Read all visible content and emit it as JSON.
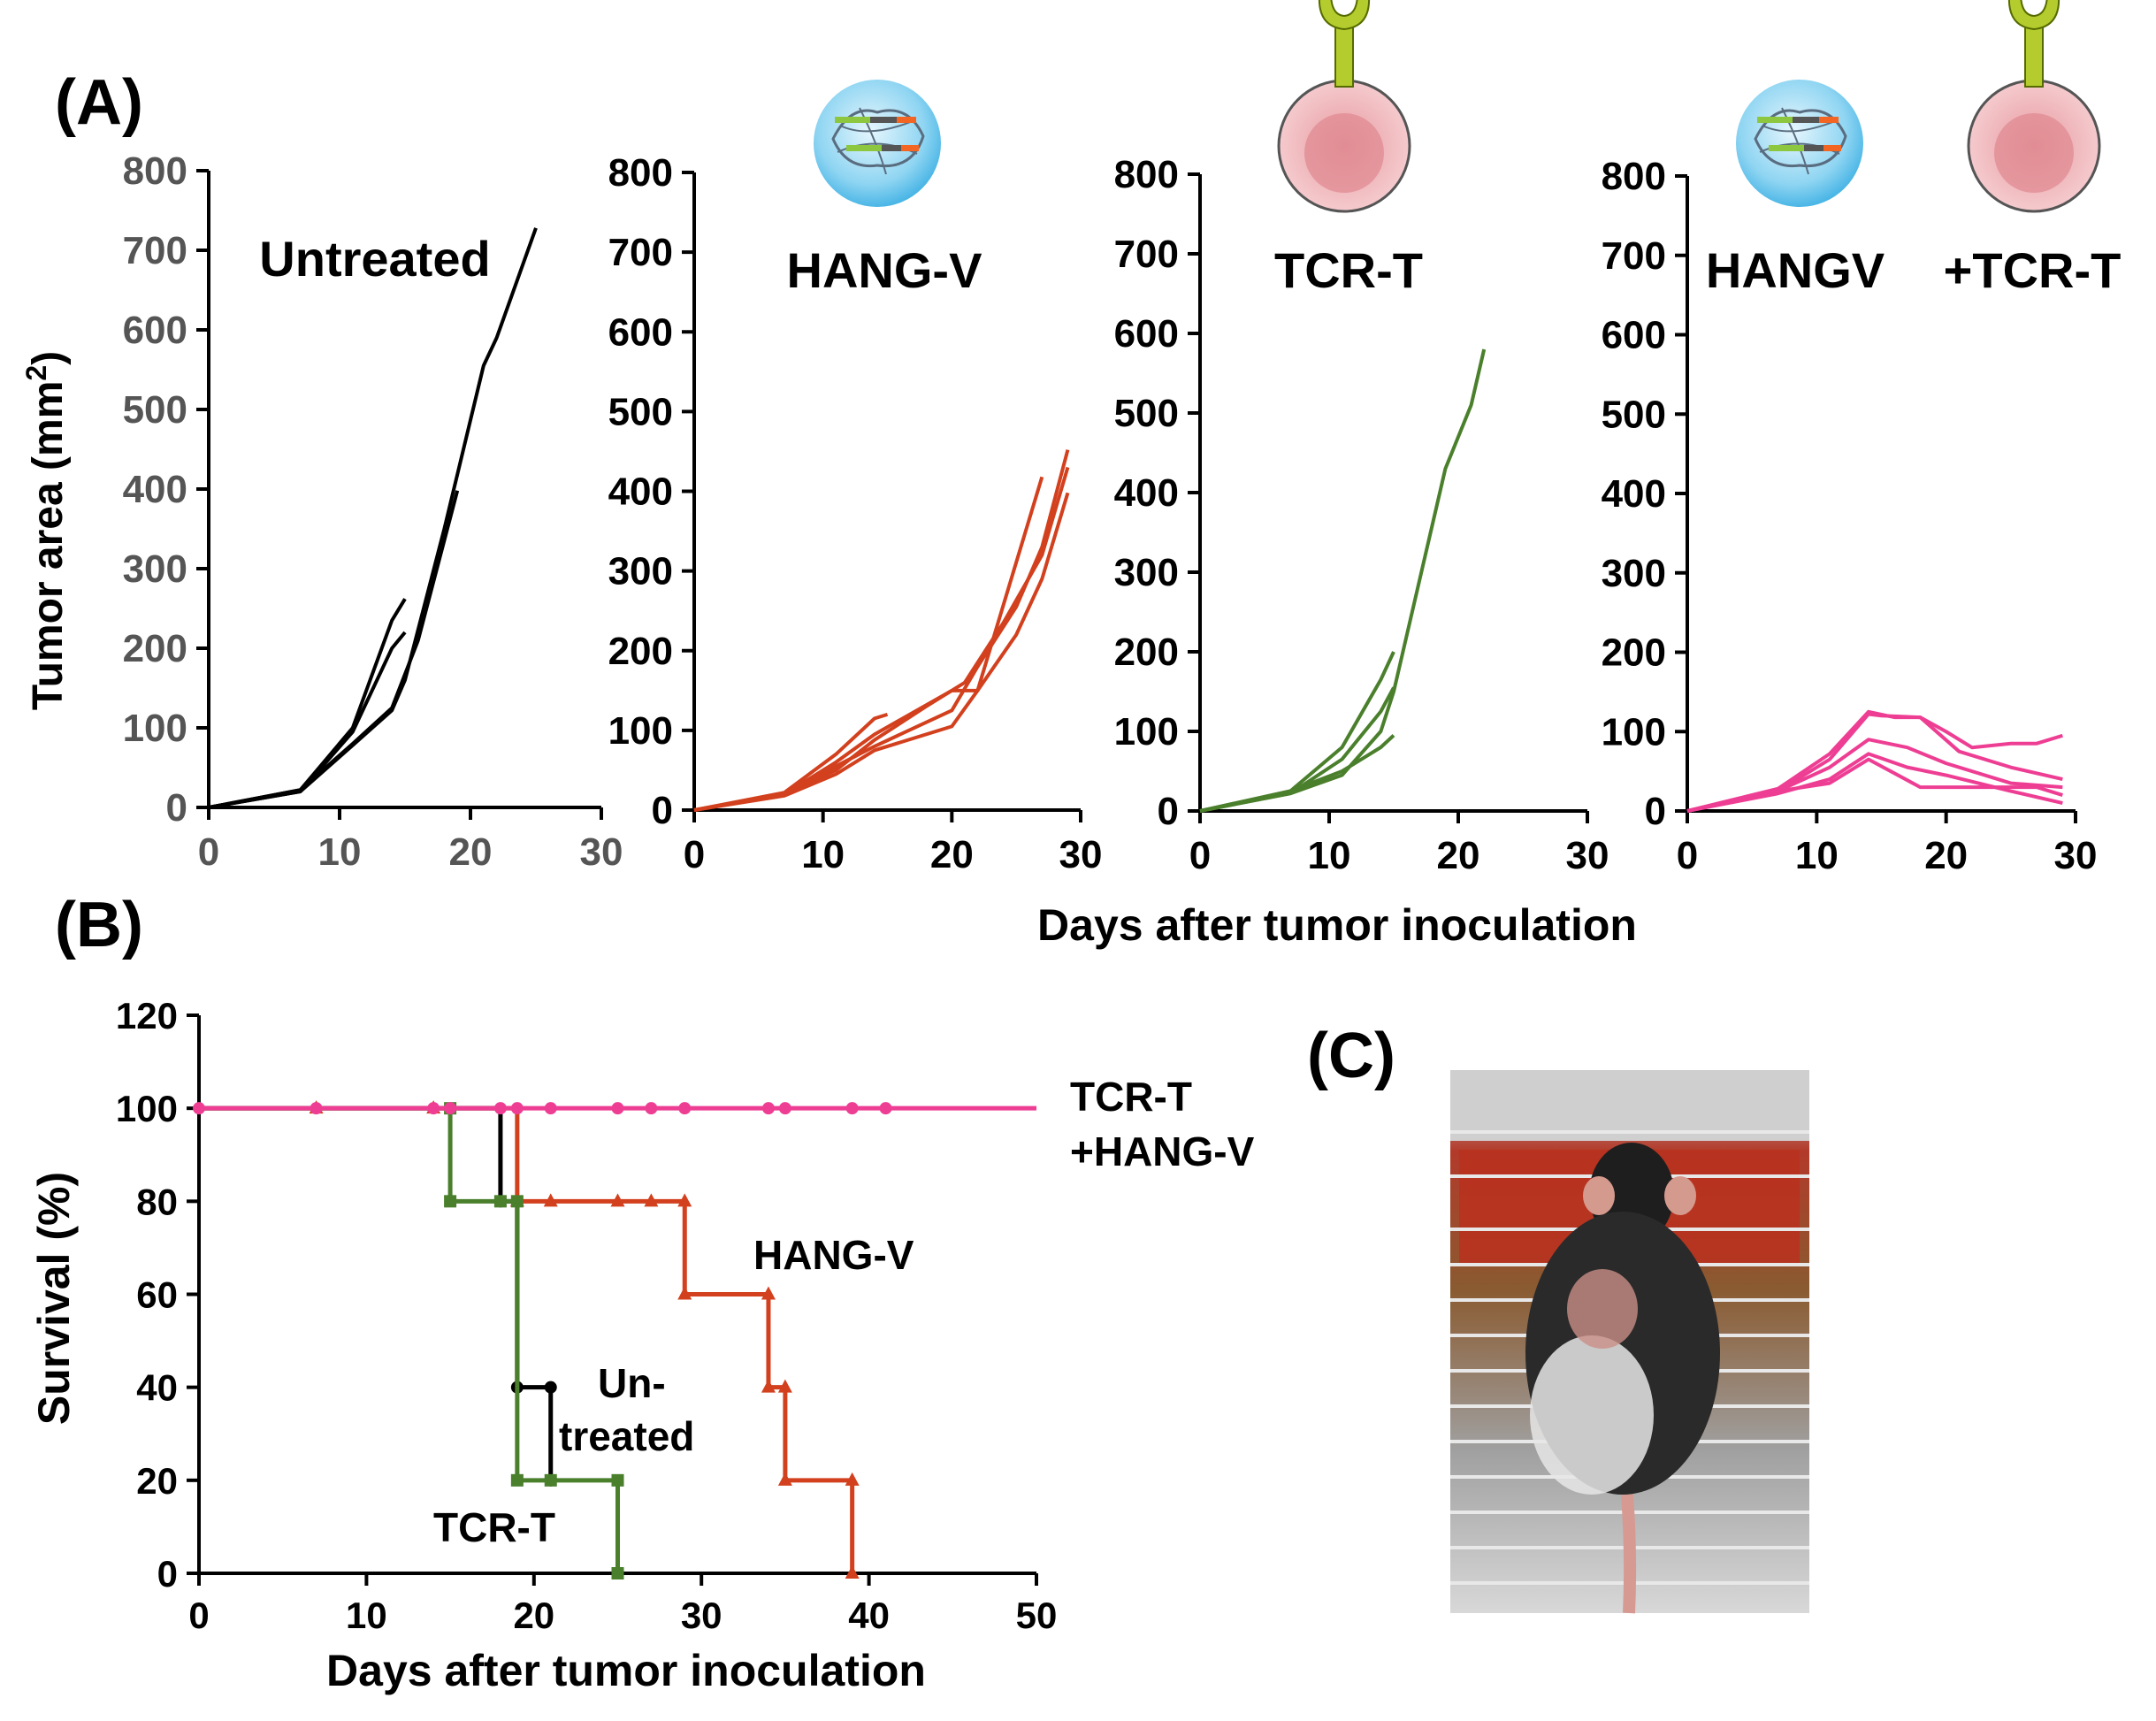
{
  "panel_labels": {
    "a": "(A)",
    "b": "(B)",
    "c": "(C)"
  },
  "colors": {
    "untreated": "#000000",
    "hangv": "#d2401e",
    "tcrt": "#4a7f2c",
    "combo": "#ee3e94"
  },
  "panel_a": {
    "ylabel": "Tumor area (mm",
    "ylabel_sup": "2",
    "ylabel_close": ")",
    "xlabel": "Days after tumor inoculation",
    "icons": [
      "nanovaccine-icon",
      "tcr-t-cell-icon"
    ]
  },
  "panel_b": {
    "ylabel": "Survival (%)",
    "xlabel": "Days after tumor inoculation",
    "labels": {
      "combo_1": "TCR-T",
      "combo_2": "+HANG-V",
      "hangv": "HANG-V",
      "untreated_1": "Un-",
      "untreated_2": "treated",
      "tcrt": "TCR-T"
    }
  },
  "panel_c": {
    "description": "photo-mouse-on-cage"
  },
  "chart_data": [
    {
      "type": "line",
      "title": "Untreated",
      "xlim": [
        0,
        30
      ],
      "ylim": [
        0,
        800
      ],
      "xticks": [
        0,
        10,
        20,
        30
      ],
      "yticks": [
        0,
        100,
        200,
        300,
        400,
        500,
        600,
        700,
        800
      ],
      "series": [
        {
          "x": [
            0,
            7,
            11,
            14,
            15
          ],
          "y": [
            0,
            22,
            100,
            235,
            262
          ]
        },
        {
          "x": [
            0,
            7,
            11,
            14,
            15
          ],
          "y": [
            0,
            20,
            95,
            200,
            220
          ]
        },
        {
          "x": [
            0,
            7,
            11,
            14,
            16,
            19
          ],
          "y": [
            0,
            22,
            80,
            125,
            210,
            398
          ]
        },
        {
          "x": [
            0,
            7,
            11,
            14,
            15,
            18,
            21,
            22,
            25
          ],
          "y": [
            0,
            20,
            78,
            122,
            160,
            350,
            555,
            590,
            728
          ]
        }
      ]
    },
    {
      "type": "line",
      "title": "HANG-V",
      "xlim": [
        0,
        30
      ],
      "ylim": [
        0,
        800
      ],
      "xticks": [
        0,
        10,
        20,
        30
      ],
      "yticks": [
        0,
        100,
        200,
        300,
        400,
        500,
        600,
        700,
        800
      ],
      "series": [
        {
          "x": [
            0,
            7,
            11,
            14,
            15
          ],
          "y": [
            0,
            22,
            70,
            115,
            120
          ]
        },
        {
          "x": [
            0,
            7,
            11,
            14,
            20,
            22,
            27
          ],
          "y": [
            0,
            20,
            60,
            95,
            150,
            150,
            418
          ]
        },
        {
          "x": [
            0,
            7,
            11,
            14,
            20,
            22,
            25,
            27,
            29
          ],
          "y": [
            0,
            20,
            55,
            80,
            125,
            180,
            255,
            330,
            452
          ]
        },
        {
          "x": [
            0,
            7,
            11,
            14,
            20,
            22,
            25,
            27,
            29
          ],
          "y": [
            0,
            18,
            45,
            75,
            105,
            150,
            220,
            290,
            398
          ]
        },
        {
          "x": [
            0,
            7,
            11,
            14,
            18,
            21,
            24,
            27,
            29
          ],
          "y": [
            0,
            20,
            50,
            88,
            130,
            160,
            235,
            320,
            430
          ]
        }
      ]
    },
    {
      "type": "line",
      "title": "TCR-T",
      "xlim": [
        0,
        30
      ],
      "ylim": [
        0,
        800
      ],
      "xticks": [
        0,
        10,
        20,
        30
      ],
      "yticks": [
        0,
        100,
        200,
        300,
        400,
        500,
        600,
        700,
        800
      ],
      "series": [
        {
          "x": [
            0,
            7,
            11,
            14,
            15
          ],
          "y": [
            0,
            25,
            80,
            165,
            200
          ]
        },
        {
          "x": [
            0,
            7,
            11,
            14,
            15
          ],
          "y": [
            0,
            22,
            65,
            125,
            155
          ]
        },
        {
          "x": [
            0,
            7,
            11,
            14,
            15
          ],
          "y": [
            0,
            25,
            50,
            80,
            95
          ]
        },
        {
          "x": [
            0,
            7,
            11,
            14,
            15,
            19,
            21,
            22
          ],
          "y": [
            0,
            22,
            45,
            100,
            150,
            430,
            510,
            580
          ]
        }
      ]
    },
    {
      "type": "line",
      "title": "HANGV",
      "title2": "+TCR-T",
      "xlim": [
        0,
        30
      ],
      "ylim": [
        0,
        800
      ],
      "xticks": [
        0,
        10,
        20,
        30
      ],
      "yticks": [
        0,
        100,
        200,
        300,
        400,
        500,
        600,
        700,
        800
      ],
      "series": [
        {
          "x": [
            0,
            7,
            11,
            14,
            15,
            18,
            20,
            22,
            25,
            27,
            29
          ],
          "y": [
            0,
            25,
            65,
            122,
            120,
            118,
            100,
            80,
            85,
            85,
            95
          ]
        },
        {
          "x": [
            0,
            7,
            11,
            14,
            16,
            18,
            21,
            25,
            29
          ],
          "y": [
            0,
            28,
            72,
            125,
            118,
            118,
            75,
            55,
            40
          ]
        },
        {
          "x": [
            0,
            7,
            11,
            14,
            17,
            20,
            25,
            29
          ],
          "y": [
            0,
            25,
            55,
            90,
            80,
            60,
            35,
            30
          ]
        },
        {
          "x": [
            0,
            7,
            11,
            14,
            17,
            20,
            25,
            29
          ],
          "y": [
            0,
            22,
            40,
            72,
            55,
            45,
            25,
            10
          ]
        },
        {
          "x": [
            0,
            7,
            11,
            14,
            18,
            22,
            27,
            29
          ],
          "y": [
            0,
            25,
            35,
            65,
            30,
            30,
            30,
            20
          ]
        }
      ]
    },
    {
      "type": "line",
      "title": "",
      "xlabel": "Days after tumor inoculation",
      "ylabel": "Survival (%)",
      "xlim": [
        0,
        50
      ],
      "ylim": [
        0,
        120
      ],
      "xticks": [
        0,
        10,
        20,
        30,
        40,
        50
      ],
      "yticks": [
        0,
        20,
        40,
        60,
        80,
        100,
        120
      ],
      "series": [
        {
          "name": "TCR-T +HANG-V",
          "step": true,
          "x": [
            0,
            50
          ],
          "y": [
            100,
            100
          ],
          "markers": [
            [
              0,
              100
            ],
            [
              7,
              100
            ],
            [
              14,
              100
            ],
            [
              15,
              100
            ],
            [
              18,
              100
            ],
            [
              19,
              100
            ],
            [
              21,
              100
            ],
            [
              25,
              100
            ],
            [
              27,
              100
            ],
            [
              29,
              100
            ],
            [
              34,
              100
            ],
            [
              35,
              100
            ],
            [
              39,
              100
            ],
            [
              41,
              100
            ]
          ]
        },
        {
          "name": "HANG-V",
          "step": true,
          "x": [
            0,
            19,
            29,
            34,
            35,
            39
          ],
          "y": [
            100,
            80,
            60,
            40,
            20,
            0
          ],
          "markers": [
            [
              7,
              100
            ],
            [
              14,
              100
            ],
            [
              19,
              80
            ],
            [
              21,
              80
            ],
            [
              25,
              80
            ],
            [
              27,
              80
            ],
            [
              29,
              80
            ],
            [
              29,
              60
            ],
            [
              34,
              60
            ],
            [
              34,
              40
            ],
            [
              35,
              40
            ],
            [
              35,
              20
            ],
            [
              39,
              20
            ],
            [
              39,
              0
            ]
          ]
        },
        {
          "name": "Untreated",
          "step": true,
          "x": [
            0,
            18,
            19,
            21
          ],
          "y": [
            100,
            80,
            40,
            20
          ],
          "markers": [
            [
              18,
              80
            ],
            [
              19,
              40
            ],
            [
              21,
              40
            ],
            [
              21,
              20
            ]
          ]
        },
        {
          "name": "TCR-T",
          "step": true,
          "x": [
            0,
            15,
            19,
            25
          ],
          "y": [
            100,
            80,
            20,
            0
          ],
          "markers": [
            [
              15,
              100
            ],
            [
              15,
              80
            ],
            [
              18,
              80
            ],
            [
              19,
              80
            ],
            [
              19,
              20
            ],
            [
              21,
              20
            ],
            [
              25,
              20
            ],
            [
              25,
              0
            ]
          ]
        }
      ]
    }
  ]
}
